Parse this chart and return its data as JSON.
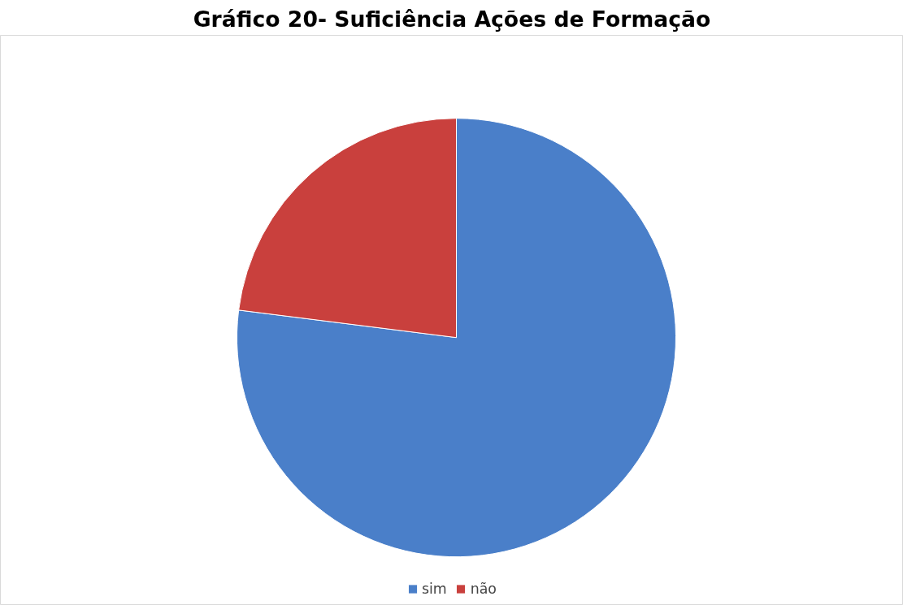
{
  "chart_data": {
    "type": "pie",
    "title": "Gráfico 20- Suficiência Ações de Formação",
    "categories": [
      "sim",
      "não"
    ],
    "values": [
      77,
      23
    ],
    "colors": [
      "#4a7fc9",
      "#c9403d"
    ],
    "legend": "bottom"
  }
}
